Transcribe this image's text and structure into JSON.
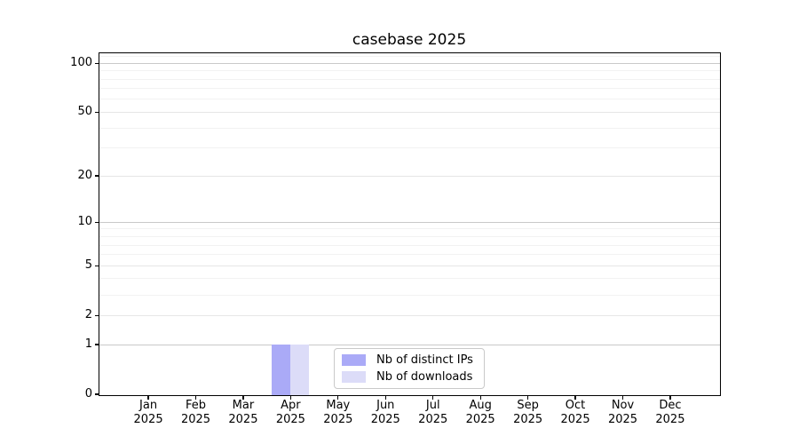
{
  "chart_data": {
    "type": "bar",
    "title": "casebase 2025",
    "categories": [
      "Jan 2025",
      "Feb 2025",
      "Mar 2025",
      "Apr 2025",
      "May 2025",
      "Jun 2025",
      "Jul 2025",
      "Aug 2025",
      "Sep 2025",
      "Oct 2025",
      "Nov 2025",
      "Dec 2025"
    ],
    "series": [
      {
        "name": "Nb of distinct IPs",
        "color": "#aaaaf7",
        "values": [
          0,
          0,
          0,
          1,
          0,
          0,
          0,
          0,
          0,
          0,
          0,
          0
        ]
      },
      {
        "name": "Nb of downloads",
        "color": "#dcdcf8",
        "values": [
          0,
          0,
          0,
          1,
          0,
          0,
          0,
          0,
          0,
          0,
          0,
          0
        ]
      }
    ],
    "y_axis": {
      "scale": "log1p",
      "ticks": [
        0,
        1,
        2,
        5,
        10,
        20,
        50,
        100
      ],
      "minor_ticks": [
        3,
        4,
        6,
        7,
        8,
        9,
        30,
        40,
        60,
        70,
        80,
        90,
        110
      ],
      "max": 115
    },
    "xlabel": "",
    "ylabel": "",
    "legend": {
      "position": "lower center",
      "entries": [
        "Nb of distinct IPs",
        "Nb of downloads"
      ]
    },
    "grid": "horizontal",
    "colors": {
      "background": "#ffffff",
      "spine": "#000000",
      "text": "#000000",
      "grid_decade": "#c9c9c9",
      "grid_major": "#e6e6e6",
      "grid_minor": "#f2f2f2",
      "legend_border": "#c9c9c9"
    }
  }
}
